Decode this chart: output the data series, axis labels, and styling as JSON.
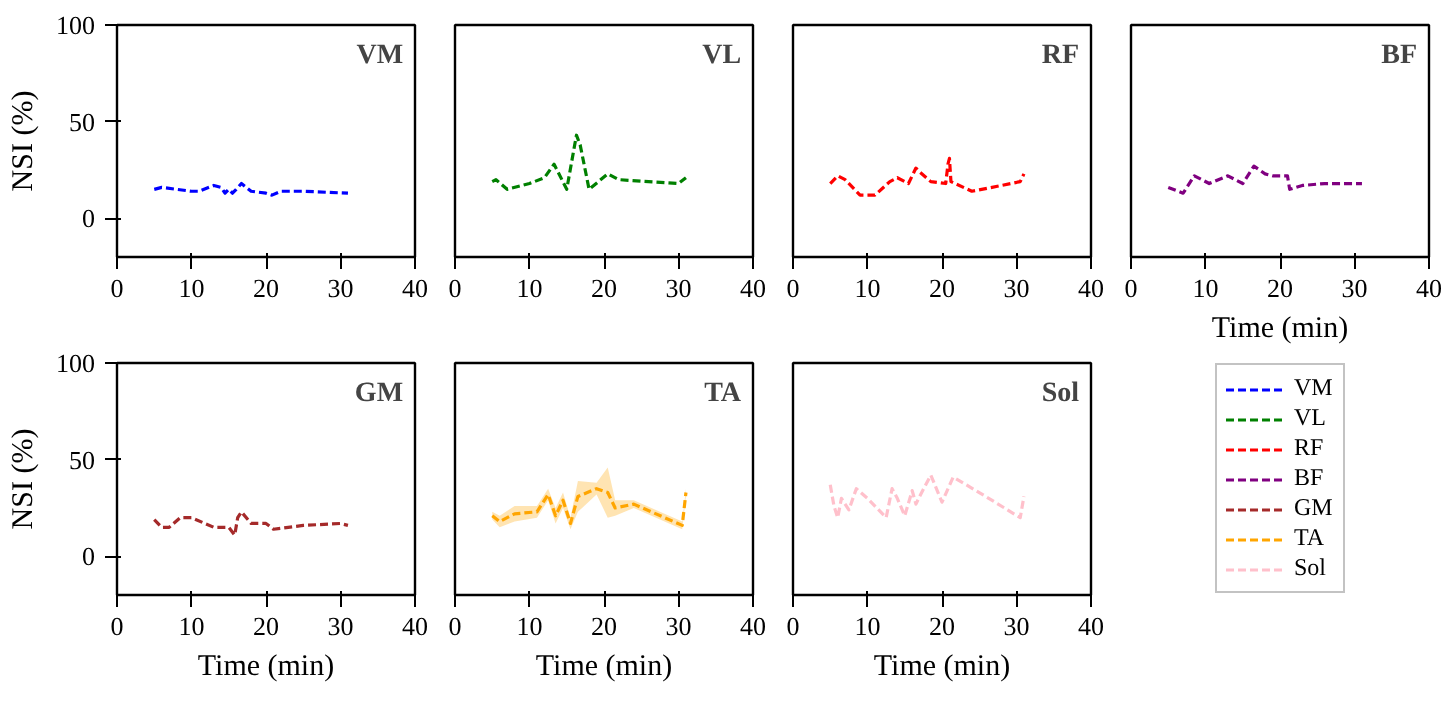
{
  "chart_data": [
    {
      "type": "line",
      "title": "VM",
      "ylabel": "NSI (%)",
      "xlim": [
        0,
        40
      ],
      "ylim": [
        -20,
        100
      ],
      "xticks": [
        0,
        10,
        20,
        30,
        40
      ],
      "yticks": [
        0,
        50,
        100
      ],
      "line_style": "dashed",
      "series": [
        {
          "name": "VM",
          "color": "#0000ff",
          "x": [
            5,
            6,
            10,
            11,
            13,
            14,
            14.5,
            15,
            15.5,
            16,
            16.7,
            18,
            20,
            20.8,
            22,
            25,
            31
          ],
          "values": [
            15,
            16,
            14,
            14,
            17,
            16,
            13,
            15,
            13,
            15,
            18,
            14,
            13,
            12,
            14,
            14,
            13
          ]
        }
      ]
    },
    {
      "type": "line",
      "title": "VL",
      "xlim": [
        0,
        40
      ],
      "ylim": [
        -20,
        100
      ],
      "xticks": [
        0,
        10,
        20,
        30,
        40
      ],
      "yticks": [
        0,
        50,
        100
      ],
      "line_style": "dashed",
      "tick_labels": "x",
      "series": [
        {
          "name": "VL",
          "color": "#008000",
          "x": [
            5,
            5.5,
            7,
            10,
            12,
            13.3,
            15,
            16.3,
            16.8,
            18,
            20.5,
            22,
            30,
            31
          ],
          "values": [
            19,
            20,
            15,
            18,
            21,
            28,
            15,
            43,
            38,
            15,
            23,
            20,
            18,
            21
          ]
        }
      ]
    },
    {
      "type": "line",
      "title": "RF",
      "xlim": [
        0,
        40
      ],
      "ylim": [
        -20,
        100
      ],
      "xticks": [
        0,
        10,
        20,
        30,
        40
      ],
      "yticks": [
        0,
        50,
        100
      ],
      "line_style": "dashed",
      "tick_labels": "x",
      "series": [
        {
          "name": "RF",
          "color": "#ff0000",
          "x": [
            5,
            6,
            7,
            9,
            11,
            13,
            14,
            15.5,
            16.5,
            17,
            18.5,
            20.5,
            20.8,
            21,
            21.2,
            24,
            28,
            30.5,
            31
          ],
          "values": [
            18,
            22,
            20,
            12,
            12,
            19,
            21,
            18,
            26,
            24,
            19,
            18,
            28,
            31,
            19,
            14,
            17,
            19,
            23
          ]
        }
      ]
    },
    {
      "type": "line",
      "title": "BF",
      "xlabel": "Time (min)",
      "xlim": [
        0,
        40
      ],
      "ylim": [
        -20,
        100
      ],
      "xticks": [
        0,
        10,
        20,
        30,
        40
      ],
      "yticks": [
        0,
        50,
        100
      ],
      "line_style": "dashed",
      "tick_labels": "x",
      "series": [
        {
          "name": "BF",
          "color": "#800080",
          "x": [
            5,
            7,
            8.5,
            10.5,
            13,
            15,
            16.5,
            18,
            19,
            21,
            21.3,
            23,
            26,
            31
          ],
          "values": [
            16,
            13,
            22,
            18,
            22,
            18,
            27,
            23,
            22,
            22,
            15,
            17,
            18,
            18
          ]
        }
      ]
    },
    {
      "type": "line",
      "title": "GM",
      "xlabel": "Time (min)",
      "ylabel": "NSI (%)",
      "xlim": [
        0,
        40
      ],
      "ylim": [
        -20,
        100
      ],
      "xticks": [
        0,
        10,
        20,
        30,
        40
      ],
      "yticks": [
        0,
        50,
        100
      ],
      "line_style": "dashed",
      "series": [
        {
          "name": "GM",
          "color": "#a52a2a",
          "x": [
            5,
            6,
            7,
            8.5,
            10,
            13,
            15,
            15.8,
            16.2,
            16.7,
            18,
            20,
            21,
            25,
            30,
            31
          ],
          "values": [
            19,
            15,
            15,
            20,
            20,
            15,
            15,
            11,
            20,
            23,
            17,
            17,
            14,
            16,
            17,
            16
          ]
        }
      ]
    },
    {
      "type": "line",
      "title": "TA",
      "xlabel": "Time (min)",
      "xlim": [
        0,
        40
      ],
      "ylim": [
        -20,
        100
      ],
      "xticks": [
        0,
        10,
        20,
        30,
        40
      ],
      "yticks": [
        0,
        50,
        100
      ],
      "line_style": "dashed",
      "tick_labels": "x",
      "series": [
        {
          "name": "TA",
          "color": "#ffa500",
          "x": [
            5,
            6,
            8,
            11,
            12.5,
            13.5,
            14.5,
            15.5,
            16.5,
            19,
            20.5,
            21.5,
            24,
            30.5,
            31
          ],
          "values": [
            21,
            18,
            22,
            23,
            32,
            21,
            29,
            17,
            31,
            35,
            33,
            25,
            27,
            16,
            33
          ],
          "lower": [
            19,
            15,
            18,
            20,
            29,
            17,
            25,
            14,
            23,
            32,
            20,
            21,
            25,
            14,
            31
          ],
          "upper": [
            23,
            21,
            26,
            26,
            35,
            25,
            33,
            20,
            39,
            38,
            46,
            29,
            29,
            18,
            35
          ]
        }
      ]
    },
    {
      "type": "line",
      "title": "Sol",
      "xlabel": "Time (min)",
      "xlim": [
        0,
        40
      ],
      "ylim": [
        -20,
        100
      ],
      "xticks": [
        0,
        10,
        20,
        30,
        40
      ],
      "yticks": [
        0,
        50,
        100
      ],
      "line_style": "dashed",
      "tick_labels": "x",
      "legend": "right",
      "series": [
        {
          "name": "Sol",
          "color": "#ffc0cb",
          "x": [
            5,
            5.5,
            6,
            6.5,
            7.5,
            8.5,
            10,
            12.5,
            13.3,
            14,
            15,
            16,
            16.5,
            17,
            18.5,
            20,
            21.5,
            25,
            30.5,
            31
          ],
          "values": [
            37,
            26,
            20,
            30,
            24,
            35,
            30,
            20,
            35,
            30,
            21,
            34,
            27,
            31,
            42,
            28,
            41,
            33,
            20,
            31
          ]
        }
      ]
    }
  ]
}
